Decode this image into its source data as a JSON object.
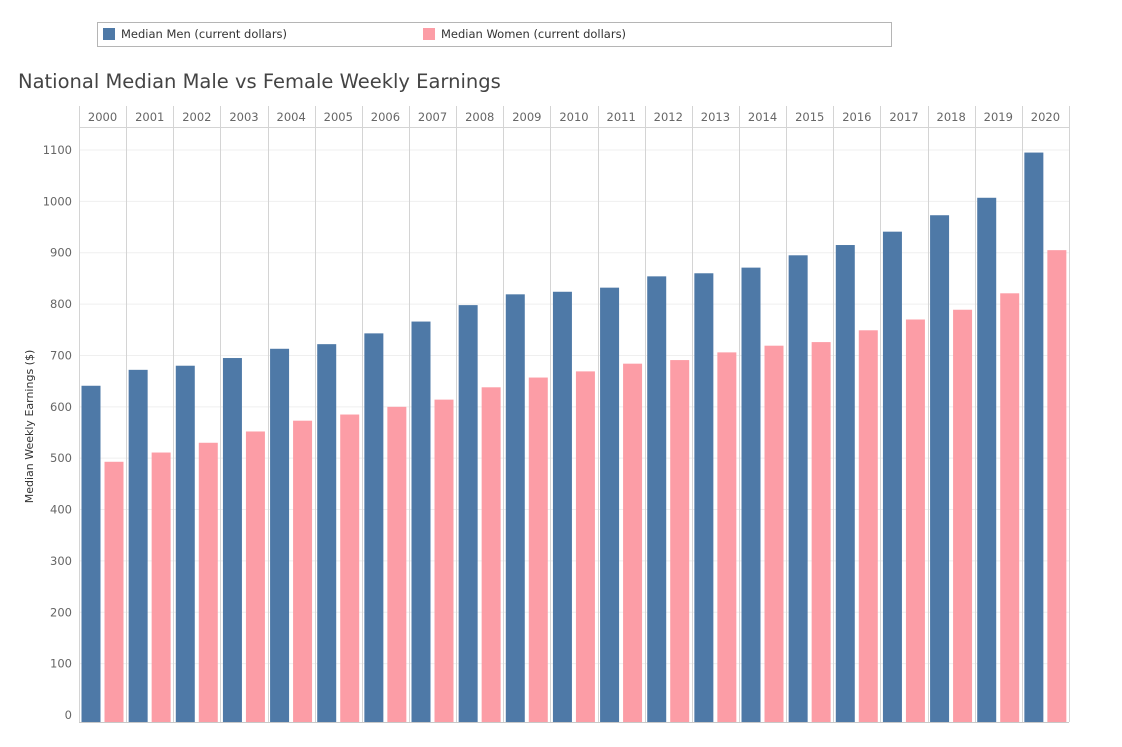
{
  "colors": {
    "men": "#4e79a7",
    "women": "#fc9da6"
  },
  "legend": {
    "men_label": "Median Men (current dollars)",
    "women_label": "Median Women (current dollars)"
  },
  "chart_data": {
    "type": "bar",
    "title": "National Median Male vs Female Weekly Earnings",
    "xlabel": "",
    "ylabel": "Median Weekly Earnings ($)",
    "ylim": [
      0,
      1100
    ],
    "yticks": [
      0,
      100,
      200,
      300,
      400,
      500,
      600,
      700,
      800,
      900,
      1000,
      1100
    ],
    "grid": true,
    "legend_position": "top",
    "categories": [
      "2000",
      "2001",
      "2002",
      "2003",
      "2004",
      "2005",
      "2006",
      "2007",
      "2008",
      "2009",
      "2010",
      "2011",
      "2012",
      "2013",
      "2014",
      "2015",
      "2016",
      "2017",
      "2018",
      "2019",
      "2020"
    ],
    "series": [
      {
        "name": "Median Men (current dollars)",
        "values": [
          641,
          672,
          680,
          695,
          713,
          722,
          743,
          766,
          798,
          819,
          824,
          832,
          854,
          860,
          871,
          895,
          915,
          941,
          973,
          1007,
          1095
        ]
      },
      {
        "name": "Median Women (current dollars)",
        "values": [
          493,
          511,
          530,
          552,
          573,
          585,
          600,
          614,
          638,
          657,
          669,
          684,
          691,
          706,
          719,
          726,
          749,
          770,
          789,
          821,
          905
        ]
      }
    ]
  }
}
